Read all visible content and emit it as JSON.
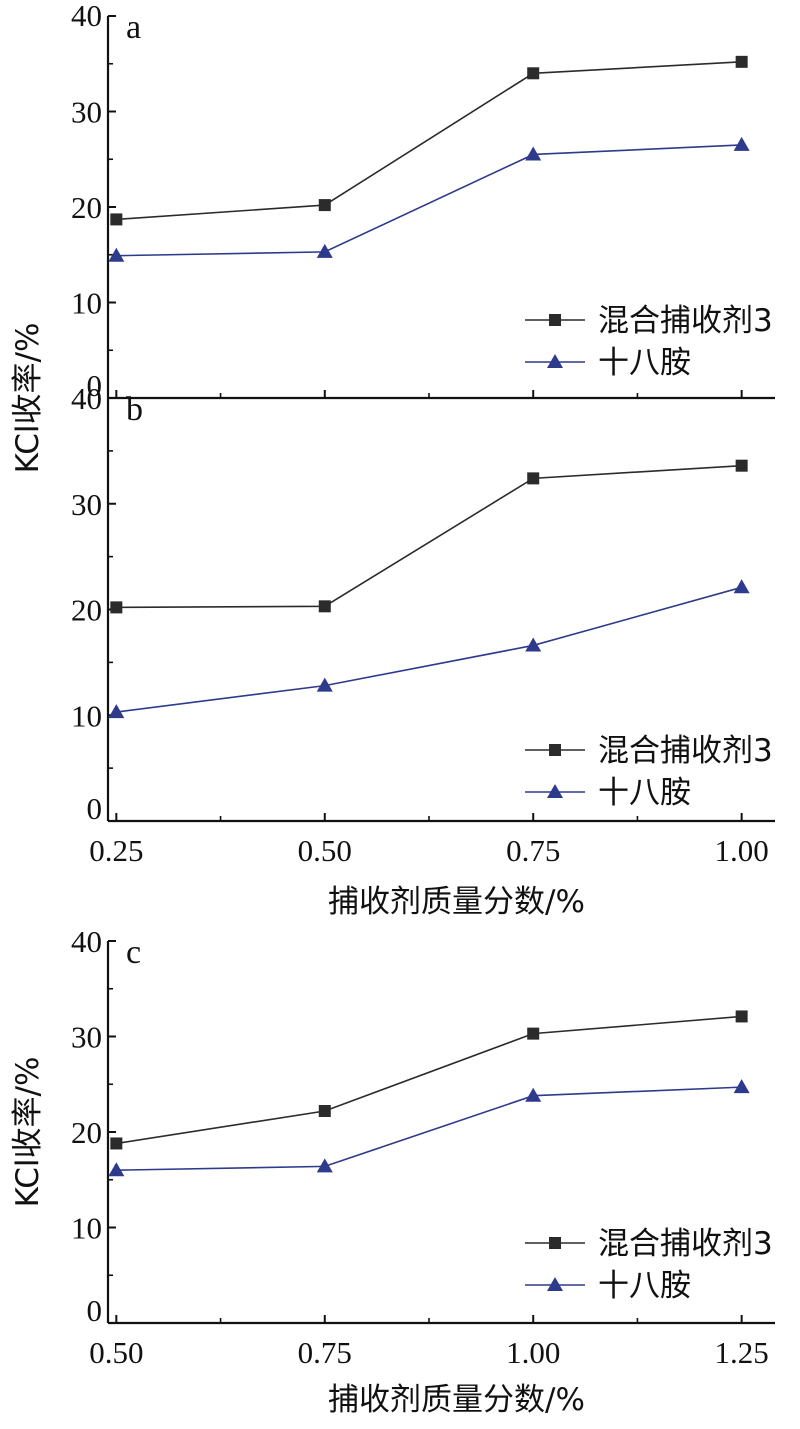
{
  "chart_data": [
    {
      "type": "line",
      "panel_label": "a",
      "ylabel": "KCl收率/%",
      "xlabel": "",
      "ylim": [
        0,
        40
      ],
      "yticks": [
        "0",
        "10",
        "20",
        "30",
        "40"
      ],
      "x": [
        0.25,
        0.5,
        0.75,
        1.0
      ],
      "xlim": [
        0.24,
        1.04
      ],
      "series": [
        {
          "name": "混合捕收剂3",
          "marker": "square",
          "color": "#2b2b2b",
          "values": [
            18.7,
            20.2,
            34.0,
            35.2
          ]
        },
        {
          "name": "十八胺",
          "marker": "triangle",
          "color": "#2e3a8c",
          "values": [
            14.9,
            15.3,
            25.5,
            26.5
          ]
        }
      ],
      "legend": "lower-right",
      "grid": false
    },
    {
      "type": "line",
      "panel_label": "b",
      "ylabel": "KCl收率/%",
      "xlabel": "捕收剂质量分数/%",
      "ylim": [
        0,
        40
      ],
      "yticks": [
        "0",
        "10",
        "20",
        "30",
        "40"
      ],
      "xticks": [
        "0.25",
        "0.50",
        "0.75",
        "1.00"
      ],
      "x": [
        0.25,
        0.5,
        0.75,
        1.0
      ],
      "xlim": [
        0.24,
        1.04
      ],
      "series": [
        {
          "name": "混合捕收剂3",
          "marker": "square",
          "color": "#2b2b2b",
          "values": [
            20.2,
            20.3,
            32.4,
            33.6
          ]
        },
        {
          "name": "十八胺",
          "marker": "triangle",
          "color": "#2e3a8c",
          "values": [
            10.3,
            12.8,
            16.6,
            22.1
          ]
        }
      ],
      "legend": "lower-right",
      "grid": false
    },
    {
      "type": "line",
      "panel_label": "c",
      "ylabel": "KCl收率/%",
      "xlabel": "捕收剂质量分数/%",
      "ylim": [
        0,
        40
      ],
      "yticks": [
        "0",
        "10",
        "20",
        "30",
        "40"
      ],
      "xticks": [
        "0.50",
        "0.75",
        "1.00",
        "1.25"
      ],
      "x": [
        0.5,
        0.75,
        1.0,
        1.25
      ],
      "xlim": [
        0.49,
        1.29
      ],
      "series": [
        {
          "name": "混合捕收剂3",
          "marker": "square",
          "color": "#2b2b2b",
          "values": [
            18.8,
            22.2,
            30.3,
            32.1
          ]
        },
        {
          "name": "十八胺",
          "marker": "triangle",
          "color": "#2e3a8c",
          "values": [
            16.0,
            16.4,
            23.8,
            24.7
          ]
        }
      ],
      "legend": "lower-right",
      "grid": false
    }
  ]
}
